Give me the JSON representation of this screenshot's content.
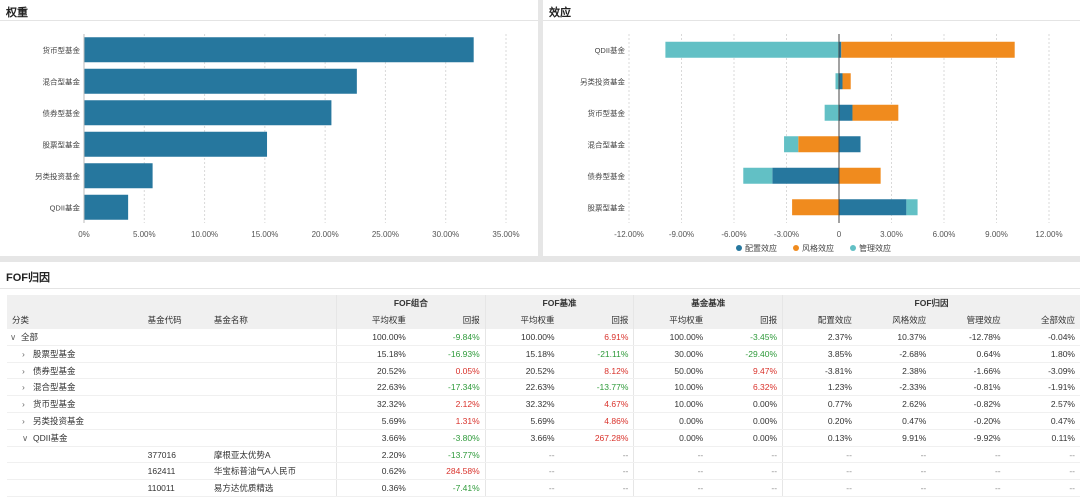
{
  "weight_panel": {
    "title": "权重",
    "chart_data": {
      "type": "bar",
      "orientation": "horizontal",
      "categories": [
        "货币型基金",
        "混合型基金",
        "债券型基金",
        "股票型基金",
        "另类投资基金",
        "QDII基金"
      ],
      "values": [
        32.32,
        22.63,
        20.52,
        15.18,
        5.69,
        3.66
      ],
      "xlim": [
        0,
        35
      ],
      "xticks": [
        "0%",
        "5.00%",
        "10.00%",
        "15.00%",
        "20.00%",
        "25.00%",
        "30.00%",
        "35.00%"
      ],
      "grid": true,
      "color": "#26779e"
    }
  },
  "effect_panel": {
    "title": "效应",
    "chart_data": {
      "type": "bar",
      "orientation": "horizontal",
      "stacked": true,
      "categories": [
        "QDII基金",
        "另类投资基金",
        "货币型基金",
        "混合型基金",
        "债券型基金",
        "股票型基金"
      ],
      "series": [
        {
          "name": "配置效应",
          "color": "#26779e",
          "values": [
            0.13,
            0.2,
            0.77,
            1.23,
            -3.81,
            3.85
          ]
        },
        {
          "name": "风格效应",
          "color": "#f08b1e",
          "values": [
            9.91,
            0.47,
            2.62,
            -2.33,
            2.38,
            -2.68
          ]
        },
        {
          "name": "管理效应",
          "color": "#62c0c5",
          "values": [
            -9.92,
            -0.2,
            -0.82,
            -0.81,
            -1.66,
            0.64
          ]
        }
      ],
      "xlim": [
        -12,
        12
      ],
      "xticks": [
        "-12.00%",
        "-9.00%",
        "-6.00%",
        "-3.00%",
        "0",
        "3.00%",
        "6.00%",
        "9.00%",
        "12.00%"
      ],
      "grid": true,
      "legend_position": "bottom"
    }
  },
  "fof": {
    "title": "FOF归因",
    "group_headers": [
      "FOF组合",
      "FOF基准",
      "基金基准",
      "FOF归因"
    ],
    "columns": [
      "分类",
      "基金代码",
      "基金名称",
      "平均权重",
      "回报",
      "平均权重",
      "回报",
      "平均权重",
      "回报",
      "配置效应",
      "风格效应",
      "管理效应",
      "全部效应"
    ],
    "rows": [
      {
        "arrow": "∨",
        "indent": 0,
        "cat": "全部",
        "code": "",
        "name": "",
        "v": [
          "100.00%",
          "-9.84%",
          "100.00%",
          "6.91%",
          "100.00%",
          "-3.45%",
          "2.37%",
          "10.37%",
          "-12.78%",
          "-0.04%"
        ]
      },
      {
        "arrow": "›",
        "indent": 1,
        "cat": "股票型基金",
        "code": "",
        "name": "",
        "v": [
          "15.18%",
          "-16.93%",
          "15.18%",
          "-21.11%",
          "30.00%",
          "-29.40%",
          "3.85%",
          "-2.68%",
          "0.64%",
          "1.80%"
        ]
      },
      {
        "arrow": "›",
        "indent": 1,
        "cat": "债券型基金",
        "code": "",
        "name": "",
        "v": [
          "20.52%",
          "0.05%",
          "20.52%",
          "8.12%",
          "50.00%",
          "9.47%",
          "-3.81%",
          "2.38%",
          "-1.66%",
          "-3.09%"
        ]
      },
      {
        "arrow": "›",
        "indent": 1,
        "cat": "混合型基金",
        "code": "",
        "name": "",
        "v": [
          "22.63%",
          "-17.34%",
          "22.63%",
          "-13.77%",
          "10.00%",
          "6.32%",
          "1.23%",
          "-2.33%",
          "-0.81%",
          "-1.91%"
        ]
      },
      {
        "arrow": "›",
        "indent": 1,
        "cat": "货币型基金",
        "code": "",
        "name": "",
        "v": [
          "32.32%",
          "2.12%",
          "32.32%",
          "4.67%",
          "10.00%",
          "0.00%",
          "0.77%",
          "2.62%",
          "-0.82%",
          "2.57%"
        ]
      },
      {
        "arrow": "›",
        "indent": 1,
        "cat": "另类投资基金",
        "code": "",
        "name": "",
        "v": [
          "5.69%",
          "1.31%",
          "5.69%",
          "4.86%",
          "0.00%",
          "0.00%",
          "0.20%",
          "0.47%",
          "-0.20%",
          "0.47%"
        ]
      },
      {
        "arrow": "∨",
        "indent": 1,
        "cat": "QDII基金",
        "code": "",
        "name": "",
        "v": [
          "3.66%",
          "-3.80%",
          "3.66%",
          "267.28%",
          "0.00%",
          "0.00%",
          "0.13%",
          "9.91%",
          "-9.92%",
          "0.11%"
        ]
      },
      {
        "arrow": "",
        "indent": 2,
        "cat": "",
        "code": "377016",
        "name": "摩根亚太优势A",
        "v": [
          "2.20%",
          "-13.77%",
          "--",
          "--",
          "--",
          "--",
          "--",
          "--",
          "--",
          "--"
        ]
      },
      {
        "arrow": "",
        "indent": 2,
        "cat": "",
        "code": "162411",
        "name": "华宝标普油气A人民币",
        "v": [
          "0.62%",
          "284.58%",
          "--",
          "--",
          "--",
          "--",
          "--",
          "--",
          "--",
          "--"
        ]
      },
      {
        "arrow": "",
        "indent": 2,
        "cat": "",
        "code": "110011",
        "name": "易方达优质精选",
        "v": [
          "0.36%",
          "-7.41%",
          "--",
          "--",
          "--",
          "--",
          "--",
          "--",
          "--",
          "--"
        ]
      }
    ]
  }
}
